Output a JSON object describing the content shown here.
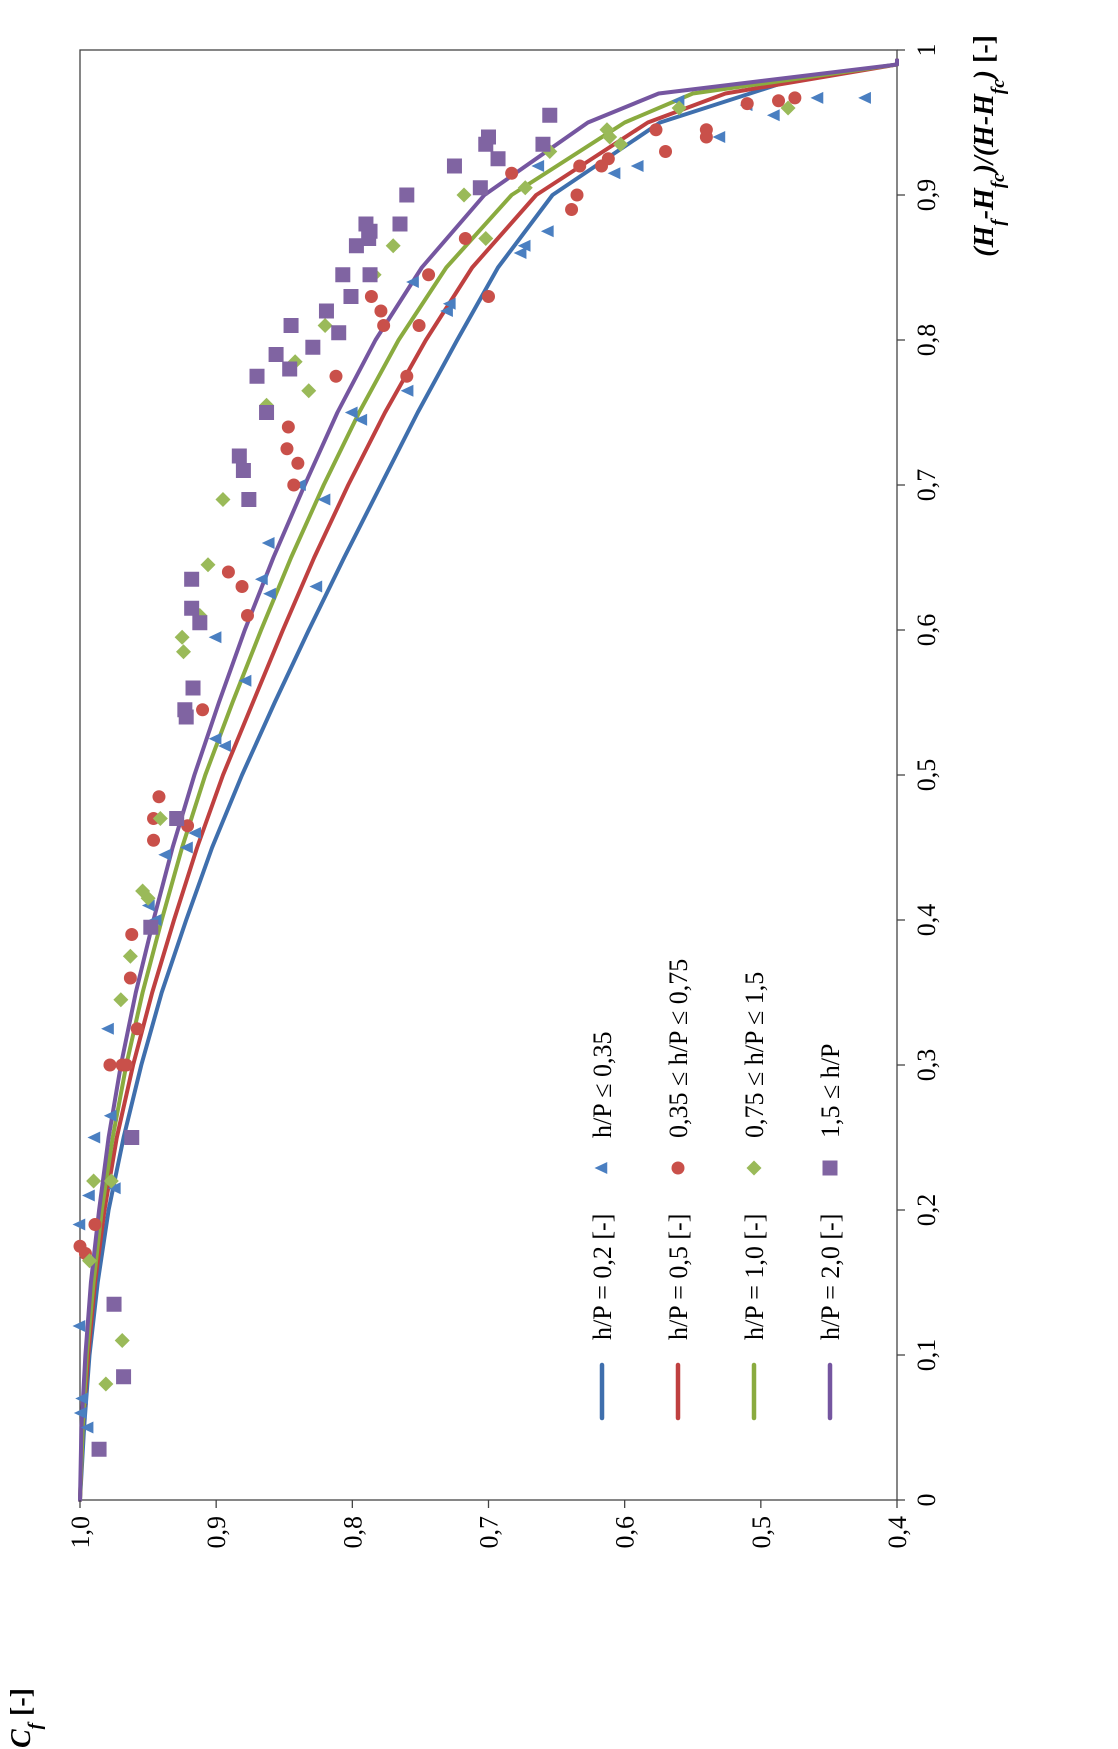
{
  "chart_data": {
    "type": "scatter",
    "orientation": "rotated-90-ccw",
    "x_axis": {
      "label": "(Hf-Hfc)/(H-Hfc)",
      "label_sub": [
        "f",
        "f",
        "fc",
        "fc"
      ],
      "unit": "[-]",
      "range": [
        0,
        1
      ],
      "ticks": [
        0,
        0.1,
        0.2,
        0.3,
        0.4,
        0.5,
        0.6,
        0.7,
        0.8,
        0.9,
        1
      ],
      "tick_labels": [
        "0",
        "0,1",
        "0,2",
        "0,3",
        "0,4",
        "0,5",
        "0,6",
        "0,7",
        "0,8",
        "0,9",
        "1"
      ]
    },
    "y_axis": {
      "label": "Cf",
      "unit": "[-]",
      "range": [
        0.4,
        1.0
      ],
      "ticks": [
        1.0,
        0.9,
        0.8,
        0.7,
        0.6,
        0.5,
        0.4
      ],
      "tick_labels": [
        "1,0",
        "0,9",
        "0,8",
        "0,7",
        "0,6",
        "0,5",
        "0,4"
      ]
    },
    "grid": false,
    "legend_position": "inside-lower-left",
    "line_legend": [
      {
        "label": "h/P = 0,2 [-]",
        "color": "#3f6fad"
      },
      {
        "label": "h/P = 0,5 [-]",
        "color": "#bf4040"
      },
      {
        "label": "h/P = 1,0 [-]",
        "color": "#8aab3f"
      },
      {
        "label": "h/P = 2,0 [-]",
        "color": "#7556a0"
      }
    ],
    "marker_legend": [
      {
        "label": "h/P ≤ 0,35",
        "marker": "triangle",
        "color": "#4a7fc1"
      },
      {
        "label": "0,35 ≤ h/P ≤ 0,75",
        "marker": "circle",
        "color": "#c9504a"
      },
      {
        "label": "0,75 ≤ h/P ≤ 1,5",
        "marker": "diamond",
        "color": "#9aba59"
      },
      {
        "label": "1,5 ≤ h/P",
        "marker": "square",
        "color": "#8064a2"
      }
    ],
    "curves": [
      {
        "color": "#3f6fad",
        "x": [
          0,
          0.05,
          0.1,
          0.15,
          0.2,
          0.25,
          0.3,
          0.35,
          0.4,
          0.45,
          0.5,
          0.55,
          0.6,
          0.65,
          0.7,
          0.75,
          0.8,
          0.85,
          0.9,
          0.95,
          0.98,
          0.99
        ],
        "y": [
          1.0,
          0.997,
          0.993,
          0.987,
          0.979,
          0.968,
          0.955,
          0.94,
          0.922,
          0.903,
          0.881,
          0.857,
          0.832,
          0.806,
          0.779,
          0.752,
          0.723,
          0.693,
          0.653,
          0.574,
          0.475,
          0.4
        ]
      },
      {
        "color": "#bf4040",
        "x": [
          0,
          0.05,
          0.1,
          0.15,
          0.2,
          0.25,
          0.3,
          0.35,
          0.4,
          0.45,
          0.5,
          0.55,
          0.6,
          0.65,
          0.7,
          0.75,
          0.8,
          0.85,
          0.9,
          0.95,
          0.97,
          0.99
        ],
        "y": [
          1.0,
          0.998,
          0.994,
          0.989,
          0.982,
          0.973,
          0.961,
          0.947,
          0.931,
          0.914,
          0.895,
          0.873,
          0.851,
          0.828,
          0.803,
          0.776,
          0.746,
          0.712,
          0.665,
          0.583,
          0.526,
          0.4
        ]
      },
      {
        "color": "#8aab3f",
        "x": [
          0,
          0.05,
          0.1,
          0.15,
          0.2,
          0.25,
          0.3,
          0.35,
          0.4,
          0.45,
          0.5,
          0.55,
          0.6,
          0.65,
          0.7,
          0.75,
          0.8,
          0.85,
          0.9,
          0.95,
          0.97,
          0.99
        ],
        "y": [
          1.0,
          0.998,
          0.995,
          0.99,
          0.984,
          0.976,
          0.966,
          0.954,
          0.94,
          0.925,
          0.908,
          0.888,
          0.867,
          0.845,
          0.821,
          0.795,
          0.766,
          0.731,
          0.683,
          0.6,
          0.55,
          0.4
        ]
      },
      {
        "color": "#7556a0",
        "x": [
          0,
          0.05,
          0.1,
          0.15,
          0.2,
          0.25,
          0.3,
          0.35,
          0.4,
          0.45,
          0.5,
          0.55,
          0.6,
          0.65,
          0.7,
          0.75,
          0.8,
          0.85,
          0.9,
          0.95,
          0.97,
          0.99
        ],
        "y": [
          1.0,
          0.999,
          0.996,
          0.992,
          0.986,
          0.979,
          0.97,
          0.959,
          0.946,
          0.932,
          0.916,
          0.898,
          0.879,
          0.858,
          0.835,
          0.811,
          0.783,
          0.749,
          0.703,
          0.627,
          0.575,
          0.4
        ]
      }
    ],
    "series": [
      {
        "name": "h/P ≤ 0,35",
        "marker": "triangle",
        "color": "#4a7fc1",
        "points": [
          [
            0.05,
            0.994
          ],
          [
            0.06,
            0.999
          ],
          [
            0.07,
            0.998
          ],
          [
            0.12,
            1.0
          ],
          [
            0.19,
            1.0
          ],
          [
            0.21,
            0.993
          ],
          [
            0.215,
            0.974
          ],
          [
            0.25,
            0.989
          ],
          [
            0.265,
            0.977
          ],
          [
            0.325,
            0.979
          ],
          [
            0.4,
            0.944
          ],
          [
            0.41,
            0.949
          ],
          [
            0.445,
            0.937
          ],
          [
            0.45,
            0.921
          ],
          [
            0.46,
            0.915
          ],
          [
            0.52,
            0.893
          ],
          [
            0.525,
            0.9
          ],
          [
            0.565,
            0.878
          ],
          [
            0.595,
            0.9
          ],
          [
            0.625,
            0.86
          ],
          [
            0.63,
            0.826
          ],
          [
            0.635,
            0.866
          ],
          [
            0.66,
            0.861
          ],
          [
            0.69,
            0.82
          ],
          [
            0.7,
            0.838
          ],
          [
            0.745,
            0.793
          ],
          [
            0.75,
            0.8
          ],
          [
            0.765,
            0.759
          ],
          [
            0.82,
            0.73
          ],
          [
            0.825,
            0.728
          ],
          [
            0.84,
            0.755
          ],
          [
            0.86,
            0.676
          ],
          [
            0.865,
            0.673
          ],
          [
            0.875,
            0.656
          ],
          [
            0.915,
            0.607
          ],
          [
            0.92,
            0.59
          ],
          [
            0.92,
            0.663
          ],
          [
            0.94,
            0.53
          ],
          [
            0.955,
            0.49
          ],
          [
            0.962,
            0.51
          ],
          [
            0.965,
            0.56
          ],
          [
            0.967,
            0.458
          ],
          [
            0.967,
            0.423
          ]
        ]
      },
      {
        "name": "0,35 ≤ h/P ≤ 0,75",
        "marker": "circle",
        "color": "#c9504a",
        "points": [
          [
            0.17,
            0.996
          ],
          [
            0.175,
            1.0
          ],
          [
            0.19,
            0.989
          ],
          [
            0.3,
            0.978
          ],
          [
            0.3,
            0.969
          ],
          [
            0.3,
            0.966
          ],
          [
            0.325,
            0.958
          ],
          [
            0.36,
            0.963
          ],
          [
            0.39,
            0.962
          ],
          [
            0.455,
            0.946
          ],
          [
            0.47,
            0.946
          ],
          [
            0.485,
            0.942
          ],
          [
            0.465,
            0.921
          ],
          [
            0.545,
            0.91
          ],
          [
            0.61,
            0.877
          ],
          [
            0.63,
            0.881
          ],
          [
            0.64,
            0.891
          ],
          [
            0.7,
            0.843
          ],
          [
            0.715,
            0.84
          ],
          [
            0.725,
            0.848
          ],
          [
            0.74,
            0.847
          ],
          [
            0.775,
            0.812
          ],
          [
            0.775,
            0.76
          ],
          [
            0.81,
            0.751
          ],
          [
            0.81,
            0.777
          ],
          [
            0.82,
            0.779
          ],
          [
            0.83,
            0.786
          ],
          [
            0.845,
            0.744
          ],
          [
            0.83,
            0.7
          ],
          [
            0.87,
            0.717
          ],
          [
            0.89,
            0.639
          ],
          [
            0.9,
            0.635
          ],
          [
            0.92,
            0.633
          ],
          [
            0.915,
            0.683
          ],
          [
            0.92,
            0.617
          ],
          [
            0.925,
            0.612
          ],
          [
            0.93,
            0.57
          ],
          [
            0.945,
            0.577
          ],
          [
            0.94,
            0.54
          ],
          [
            0.945,
            0.54
          ],
          [
            0.965,
            0.487
          ],
          [
            0.963,
            0.51
          ],
          [
            0.967,
            0.475
          ]
        ]
      },
      {
        "name": "0,75 ≤ h/P ≤ 1,5",
        "marker": "diamond",
        "color": "#9aba59",
        "points": [
          [
            0.08,
            0.981
          ],
          [
            0.11,
            0.969
          ],
          [
            0.165,
            0.993
          ],
          [
            0.22,
            0.99
          ],
          [
            0.22,
            0.977
          ],
          [
            0.345,
            0.97
          ],
          [
            0.375,
            0.963
          ],
          [
            0.415,
            0.95
          ],
          [
            0.42,
            0.954
          ],
          [
            0.47,
            0.941
          ],
          [
            0.585,
            0.924
          ],
          [
            0.595,
            0.925
          ],
          [
            0.61,
            0.912
          ],
          [
            0.645,
            0.906
          ],
          [
            0.69,
            0.895
          ],
          [
            0.755,
            0.863
          ],
          [
            0.765,
            0.832
          ],
          [
            0.785,
            0.842
          ],
          [
            0.81,
            0.82
          ],
          [
            0.845,
            0.784
          ],
          [
            0.865,
            0.77
          ],
          [
            0.87,
            0.702
          ],
          [
            0.9,
            0.718
          ],
          [
            0.905,
            0.673
          ],
          [
            0.93,
            0.655
          ],
          [
            0.935,
            0.603
          ],
          [
            0.94,
            0.611
          ],
          [
            0.945,
            0.613
          ],
          [
            0.96,
            0.56
          ],
          [
            0.96,
            0.48
          ]
        ]
      },
      {
        "name": "1,5 ≤ h/P",
        "marker": "square",
        "color": "#8064a2",
        "points": [
          [
            0.035,
            0.986
          ],
          [
            0.085,
            0.968
          ],
          [
            0.135,
            0.975
          ],
          [
            0.25,
            0.962
          ],
          [
            0.395,
            0.948
          ],
          [
            0.47,
            0.929
          ],
          [
            0.54,
            0.922
          ],
          [
            0.545,
            0.923
          ],
          [
            0.56,
            0.917
          ],
          [
            0.605,
            0.912
          ],
          [
            0.615,
            0.918
          ],
          [
            0.635,
            0.918
          ],
          [
            0.69,
            0.876
          ],
          [
            0.71,
            0.88
          ],
          [
            0.72,
            0.883
          ],
          [
            0.75,
            0.863
          ],
          [
            0.775,
            0.87
          ],
          [
            0.78,
            0.846
          ],
          [
            0.79,
            0.856
          ],
          [
            0.795,
            0.829
          ],
          [
            0.81,
            0.845
          ],
          [
            0.805,
            0.81
          ],
          [
            0.82,
            0.819
          ],
          [
            0.83,
            0.801
          ],
          [
            0.845,
            0.807
          ],
          [
            0.845,
            0.787
          ],
          [
            0.865,
            0.797
          ],
          [
            0.87,
            0.788
          ],
          [
            0.875,
            0.787
          ],
          [
            0.88,
            0.79
          ],
          [
            0.88,
            0.765
          ],
          [
            0.9,
            0.76
          ],
          [
            0.905,
            0.706
          ],
          [
            0.92,
            0.725
          ],
          [
            0.925,
            0.693
          ],
          [
            0.935,
            0.66
          ],
          [
            0.935,
            0.702
          ],
          [
            0.94,
            0.7
          ],
          [
            0.955,
            0.655
          ]
        ]
      }
    ]
  }
}
